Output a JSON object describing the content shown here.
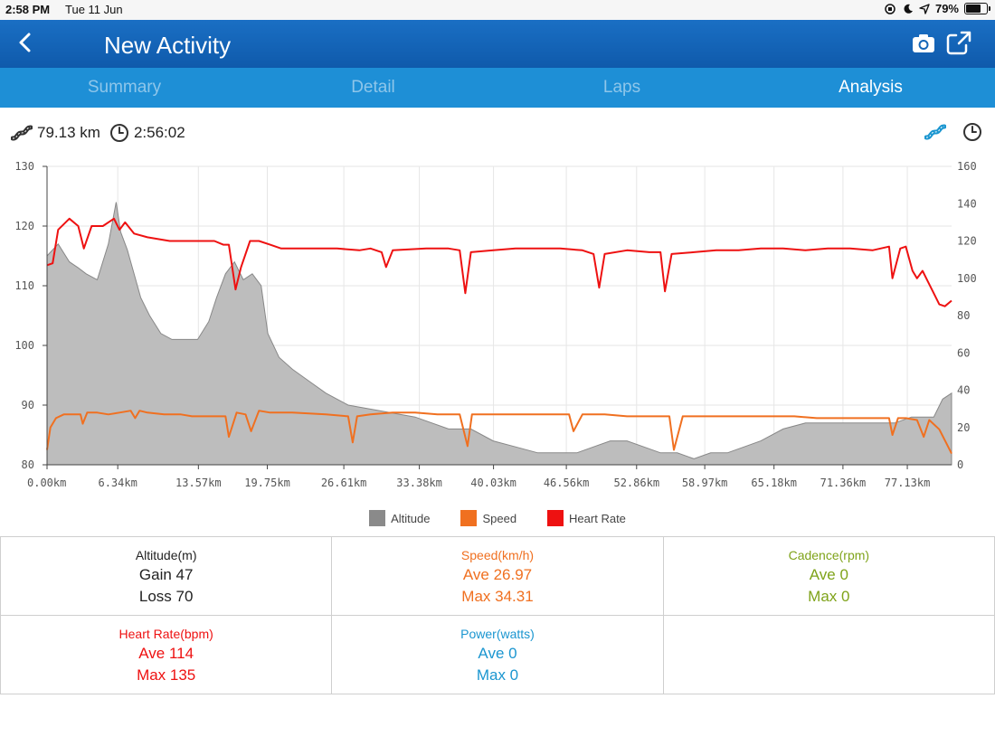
{
  "status": {
    "time": "2:58 PM",
    "date": "Tue 11 Jun",
    "battery": "79%",
    "battery_level": 0.79
  },
  "header": {
    "title": "New Activity"
  },
  "tabs": [
    {
      "label": "Summary"
    },
    {
      "label": "Detail"
    },
    {
      "label": "Laps"
    },
    {
      "label": "Analysis"
    }
  ],
  "summary": {
    "distance": "79.13 km",
    "duration": "2:56:02"
  },
  "colors": {
    "altitude": "#8a8a8a",
    "speed": "#f07020",
    "heart_rate": "#ee1111",
    "cadence": "#7fa31a",
    "power": "#1b96d0"
  },
  "chart_data": {
    "type": "line",
    "x_unit": "km",
    "x_range": [
      0,
      81.1
    ],
    "x_ticks": [
      {
        "value": 0,
        "label": "0.00km"
      },
      {
        "value": 6.34,
        "label": "6.34km"
      },
      {
        "value": 13.57,
        "label": "13.57km"
      },
      {
        "value": 19.75,
        "label": "19.75km"
      },
      {
        "value": 26.61,
        "label": "26.61km"
      },
      {
        "value": 33.38,
        "label": "33.38km"
      },
      {
        "value": 40.03,
        "label": "40.03km"
      },
      {
        "value": 46.56,
        "label": "46.56km"
      },
      {
        "value": 52.86,
        "label": "52.86km"
      },
      {
        "value": 58.97,
        "label": "58.97km"
      },
      {
        "value": 65.18,
        "label": "65.18km"
      },
      {
        "value": 71.36,
        "label": "71.36km"
      },
      {
        "value": 77.13,
        "label": "77.13km"
      }
    ],
    "y_left": {
      "range": [
        80,
        130
      ],
      "ticks": [
        80,
        90,
        100,
        110,
        120,
        130
      ]
    },
    "y_right": {
      "range": [
        0,
        160
      ],
      "ticks": [
        0,
        20,
        40,
        60,
        80,
        100,
        120,
        140,
        160
      ]
    },
    "grid": true,
    "legend_position": "bottom",
    "series": [
      {
        "name": "Altitude",
        "axis": "left",
        "style": "area",
        "x": [
          0,
          1,
          2,
          2.8,
          3.5,
          4.5,
          5.5,
          6.2,
          6.6,
          7.2,
          7.8,
          8.4,
          9.2,
          10.2,
          11.2,
          12.5,
          13.5,
          14.5,
          15.2,
          16,
          16.8,
          17.6,
          18.4,
          19.2,
          19.8,
          20.8,
          22,
          23.5,
          25,
          27,
          30,
          33,
          36,
          38,
          40,
          42,
          44,
          46,
          47.5,
          49,
          50.5,
          52,
          53.5,
          55,
          56.5,
          58,
          59.5,
          61,
          62.5,
          64,
          66,
          68,
          70,
          72,
          74,
          76,
          77.5,
          78.5,
          79.5,
          80.3,
          81.1
        ],
        "values": [
          115,
          117,
          114,
          113,
          112,
          111,
          117,
          124,
          119,
          116,
          112,
          108,
          105,
          102,
          101,
          101,
          101,
          104,
          108,
          112,
          114,
          111,
          112,
          110,
          102,
          98,
          96,
          94,
          92,
          90,
          89,
          88,
          86,
          86,
          84,
          83,
          82,
          82,
          82,
          83,
          84,
          84,
          83,
          82,
          82,
          81,
          82,
          82,
          83,
          84,
          86,
          87,
          87,
          87,
          87,
          87,
          88,
          88,
          88,
          91,
          92
        ]
      },
      {
        "name": "Speed",
        "axis": "right",
        "style": "line",
        "x": [
          0,
          0.3,
          0.8,
          1.5,
          3,
          3.2,
          3.6,
          4.5,
          5.5,
          6.5,
          7.5,
          7.9,
          8.3,
          9,
          10.5,
          12,
          13,
          14.5,
          16,
          16.3,
          17,
          17.8,
          18.3,
          19,
          20,
          22,
          25,
          27,
          27.4,
          27.8,
          29,
          31,
          33,
          35,
          37,
          37.7,
          38.1,
          39,
          41,
          43,
          45,
          46.8,
          47.2,
          48,
          50,
          52,
          54,
          55.8,
          56.2,
          57,
          59,
          61,
          63,
          65,
          67,
          69,
          71,
          73,
          75.5,
          75.8,
          76.3,
          77,
          78,
          78.6,
          79.1,
          80,
          80.6,
          81.1
        ],
        "values": [
          8,
          20,
          25,
          27,
          27,
          22,
          28,
          28,
          27,
          28,
          29,
          25,
          29,
          28,
          27,
          27,
          26,
          26,
          26,
          15,
          28,
          27,
          18,
          29,
          28,
          28,
          27,
          26,
          12,
          26,
          27,
          28,
          28,
          27,
          27,
          10,
          27,
          27,
          27,
          27,
          27,
          27,
          18,
          27,
          27,
          26,
          26,
          26,
          8,
          26,
          26,
          26,
          26,
          26,
          26,
          25,
          25,
          25,
          25,
          16,
          25,
          25,
          24,
          15,
          24,
          19,
          12,
          6
        ]
      },
      {
        "name": "Heart Rate",
        "axis": "right",
        "style": "line",
        "x": [
          0,
          0.5,
          1,
          2,
          2.8,
          3.3,
          4,
          5,
          6,
          6.5,
          7,
          7.8,
          9,
          11,
          13,
          15,
          15.8,
          16.3,
          16.9,
          17.4,
          18.2,
          19,
          20,
          21,
          22,
          24,
          26,
          28,
          29,
          30,
          30.4,
          31,
          34,
          36,
          37,
          37.5,
          38,
          40,
          42,
          44,
          46,
          48,
          49,
          49.5,
          50,
          52,
          54,
          55,
          55.4,
          56,
          58,
          60,
          62,
          64,
          66,
          68,
          70,
          72,
          74,
          75.5,
          75.8,
          76.5,
          77,
          77.6,
          78,
          78.5,
          79,
          79.5,
          80,
          80.5,
          81.1
        ],
        "values": [
          107,
          108,
          126,
          132,
          128,
          116,
          128,
          128,
          132,
          126,
          130,
          124,
          122,
          120,
          120,
          120,
          118,
          118,
          94,
          106,
          120,
          120,
          118,
          116,
          116,
          116,
          116,
          115,
          116,
          114,
          106,
          115,
          116,
          116,
          115,
          92,
          114,
          115,
          116,
          116,
          116,
          115,
          113,
          95,
          113,
          115,
          114,
          114,
          93,
          113,
          114,
          115,
          115,
          116,
          116,
          115,
          116,
          116,
          115,
          117,
          100,
          116,
          117,
          104,
          100,
          104,
          98,
          92,
          86,
          85,
          88
        ]
      }
    ]
  },
  "legend": [
    {
      "label": "Altitude"
    },
    {
      "label": "Speed"
    },
    {
      "label": "Heart Rate"
    }
  ],
  "stats": {
    "altitude": {
      "title": "Altitude(m)",
      "line1": "Gain 47",
      "line2": "Loss 70"
    },
    "speed": {
      "title": "Speed(km/h)",
      "line1": "Ave 26.97",
      "line2": "Max 34.31"
    },
    "cadence": {
      "title": "Cadence(rpm)",
      "line1": "Ave 0",
      "line2": "Max 0"
    },
    "heart_rate": {
      "title": "Heart Rate(bpm)",
      "line1": "Ave 114",
      "line2": "Max 135"
    },
    "power": {
      "title": "Power(watts)",
      "line1": "Ave 0",
      "line2": "Max 0"
    }
  }
}
